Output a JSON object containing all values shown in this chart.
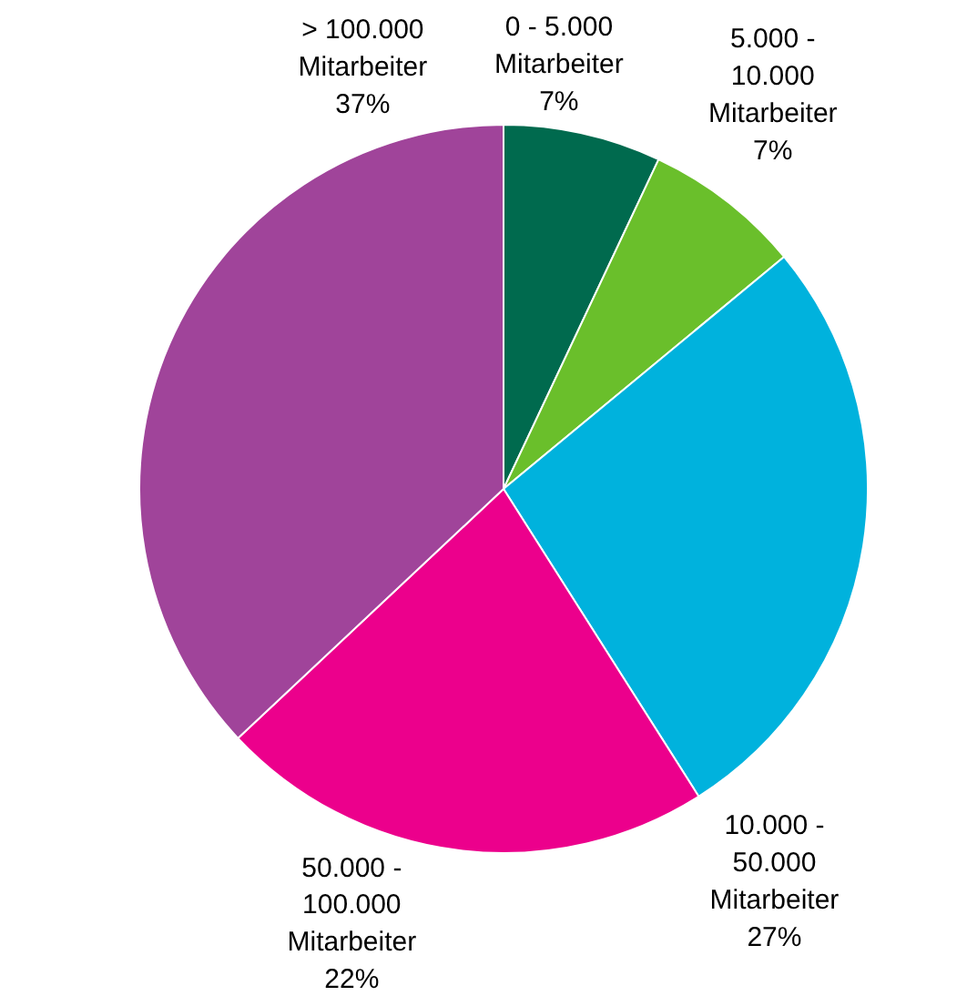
{
  "chart_data": {
    "type": "pie",
    "categories": [
      "0 - 5.000\nMitarbeiter",
      "5.000 -\n10.000\nMitarbeiter",
      "10.000 -\n50.000\nMitarbeiter",
      "50.000 -\n100.000\nMitarbeiter",
      "> 100.000\nMitarbeiter"
    ],
    "values": [
      7,
      7,
      27,
      22,
      37
    ],
    "value_labels": [
      "7%",
      "7%",
      "27%",
      "22%",
      "37%"
    ],
    "colors": [
      "#006a4e",
      "#6abf2b",
      "#00b2dd",
      "#ec008c",
      "#a0449a"
    ]
  }
}
